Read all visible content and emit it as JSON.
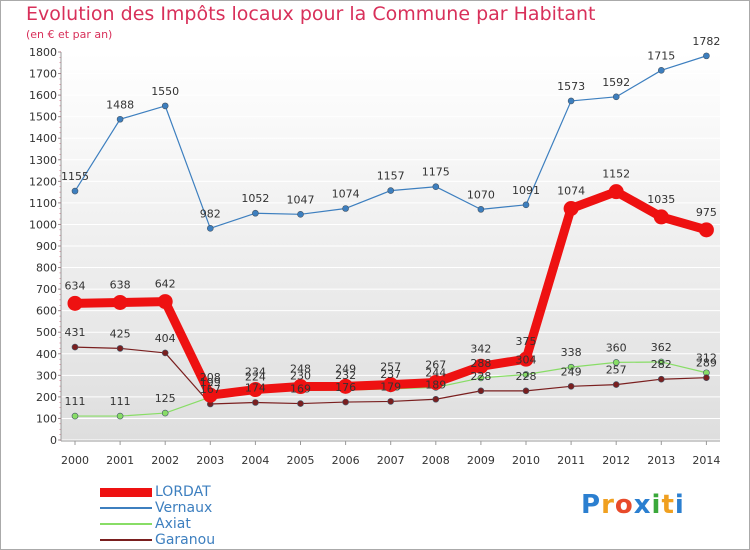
{
  "chart_data": {
    "type": "line",
    "title": "Evolution des Impôts locaux pour la Commune par Habitant",
    "subtitle": "(en € et par an)",
    "xlabel": "",
    "ylabel": "",
    "ylim": [
      0,
      1800
    ],
    "yticks": [
      0,
      100,
      200,
      300,
      400,
      500,
      600,
      700,
      800,
      900,
      1000,
      1100,
      1200,
      1300,
      1400,
      1500,
      1600,
      1700,
      1800
    ],
    "categories": [
      "2000",
      "2001",
      "2002",
      "2003",
      "2004",
      "2005",
      "2006",
      "2007",
      "2008",
      "2009",
      "2010",
      "2011",
      "2012",
      "2013",
      "2014"
    ],
    "grid": true,
    "legend_position": "bottom-left",
    "series": [
      {
        "name": "LORDAT",
        "color": "#ee1111",
        "values": [
          634,
          638,
          642,
          208,
          234,
          248,
          249,
          257,
          267,
          342,
          375,
          1074,
          1152,
          1035,
          975
        ]
      },
      {
        "name": "Vernaux",
        "color": "#3d7fbf",
        "values": [
          1155,
          1488,
          1550,
          982,
          1052,
          1047,
          1074,
          1157,
          1175,
          1070,
          1091,
          1573,
          1592,
          1715,
          1782
        ]
      },
      {
        "name": "Axiat",
        "color": "#88dd66",
        "values": [
          111,
          111,
          125,
          199,
          224,
          230,
          232,
          237,
          244,
          288,
          304,
          338,
          360,
          362,
          312
        ]
      },
      {
        "name": "Garanou",
        "color": "#7a1f1f",
        "values": [
          431,
          425,
          404,
          167,
          174,
          169,
          176,
          179,
          189,
          228,
          228,
          249,
          257,
          282,
          289
        ]
      }
    ]
  },
  "logo": {
    "text": "PrOxIti",
    "letters": [
      "P",
      "r",
      "o",
      "x",
      "i",
      "t",
      "i"
    ]
  }
}
